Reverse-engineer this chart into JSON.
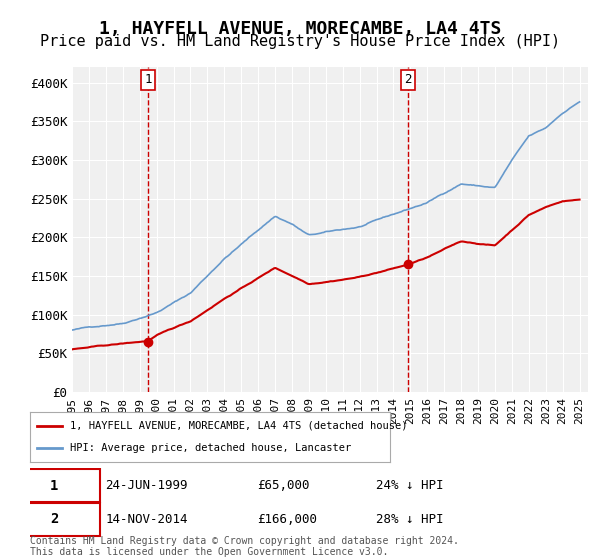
{
  "title": "1, HAYFELL AVENUE, MORECAMBE, LA4 4TS",
  "subtitle": "Price paid vs. HM Land Registry's House Price Index (HPI)",
  "title_fontsize": 13,
  "subtitle_fontsize": 11,
  "ylabel": "",
  "ylim": [
    0,
    420000
  ],
  "yticks": [
    0,
    50000,
    100000,
    150000,
    200000,
    250000,
    300000,
    350000,
    400000
  ],
  "ytick_labels": [
    "£0",
    "£50K",
    "£100K",
    "£150K",
    "£200K",
    "£250K",
    "£300K",
    "£350K",
    "£400K"
  ],
  "background_color": "#ffffff",
  "plot_bg_color": "#f0f0f0",
  "grid_color": "#ffffff",
  "red_color": "#cc0000",
  "blue_color": "#6699cc",
  "legend_label_red": "1, HAYFELL AVENUE, MORECAMBE, LA4 4TS (detached house)",
  "legend_label_blue": "HPI: Average price, detached house, Lancaster",
  "annotation1_date": "24-JUN-1999",
  "annotation1_price": "£65,000",
  "annotation1_hpi": "24% ↓ HPI",
  "annotation1_year": 1999.48,
  "annotation1_value": 65000,
  "annotation2_date": "14-NOV-2014",
  "annotation2_price": "£166,000",
  "annotation2_hpi": "28% ↓ HPI",
  "annotation2_year": 2014.87,
  "annotation2_value": 166000,
  "footer": "Contains HM Land Registry data © Crown copyright and database right 2024.\nThis data is licensed under the Open Government Licence v3.0.",
  "xmin": 1995,
  "xmax": 2025.5,
  "xticks": [
    1995,
    1996,
    1997,
    1998,
    1999,
    2000,
    2001,
    2002,
    2003,
    2004,
    2005,
    2006,
    2007,
    2008,
    2009,
    2010,
    2011,
    2012,
    2013,
    2014,
    2015,
    2016,
    2017,
    2018,
    2019,
    2020,
    2021,
    2022,
    2023,
    2024,
    2025
  ]
}
